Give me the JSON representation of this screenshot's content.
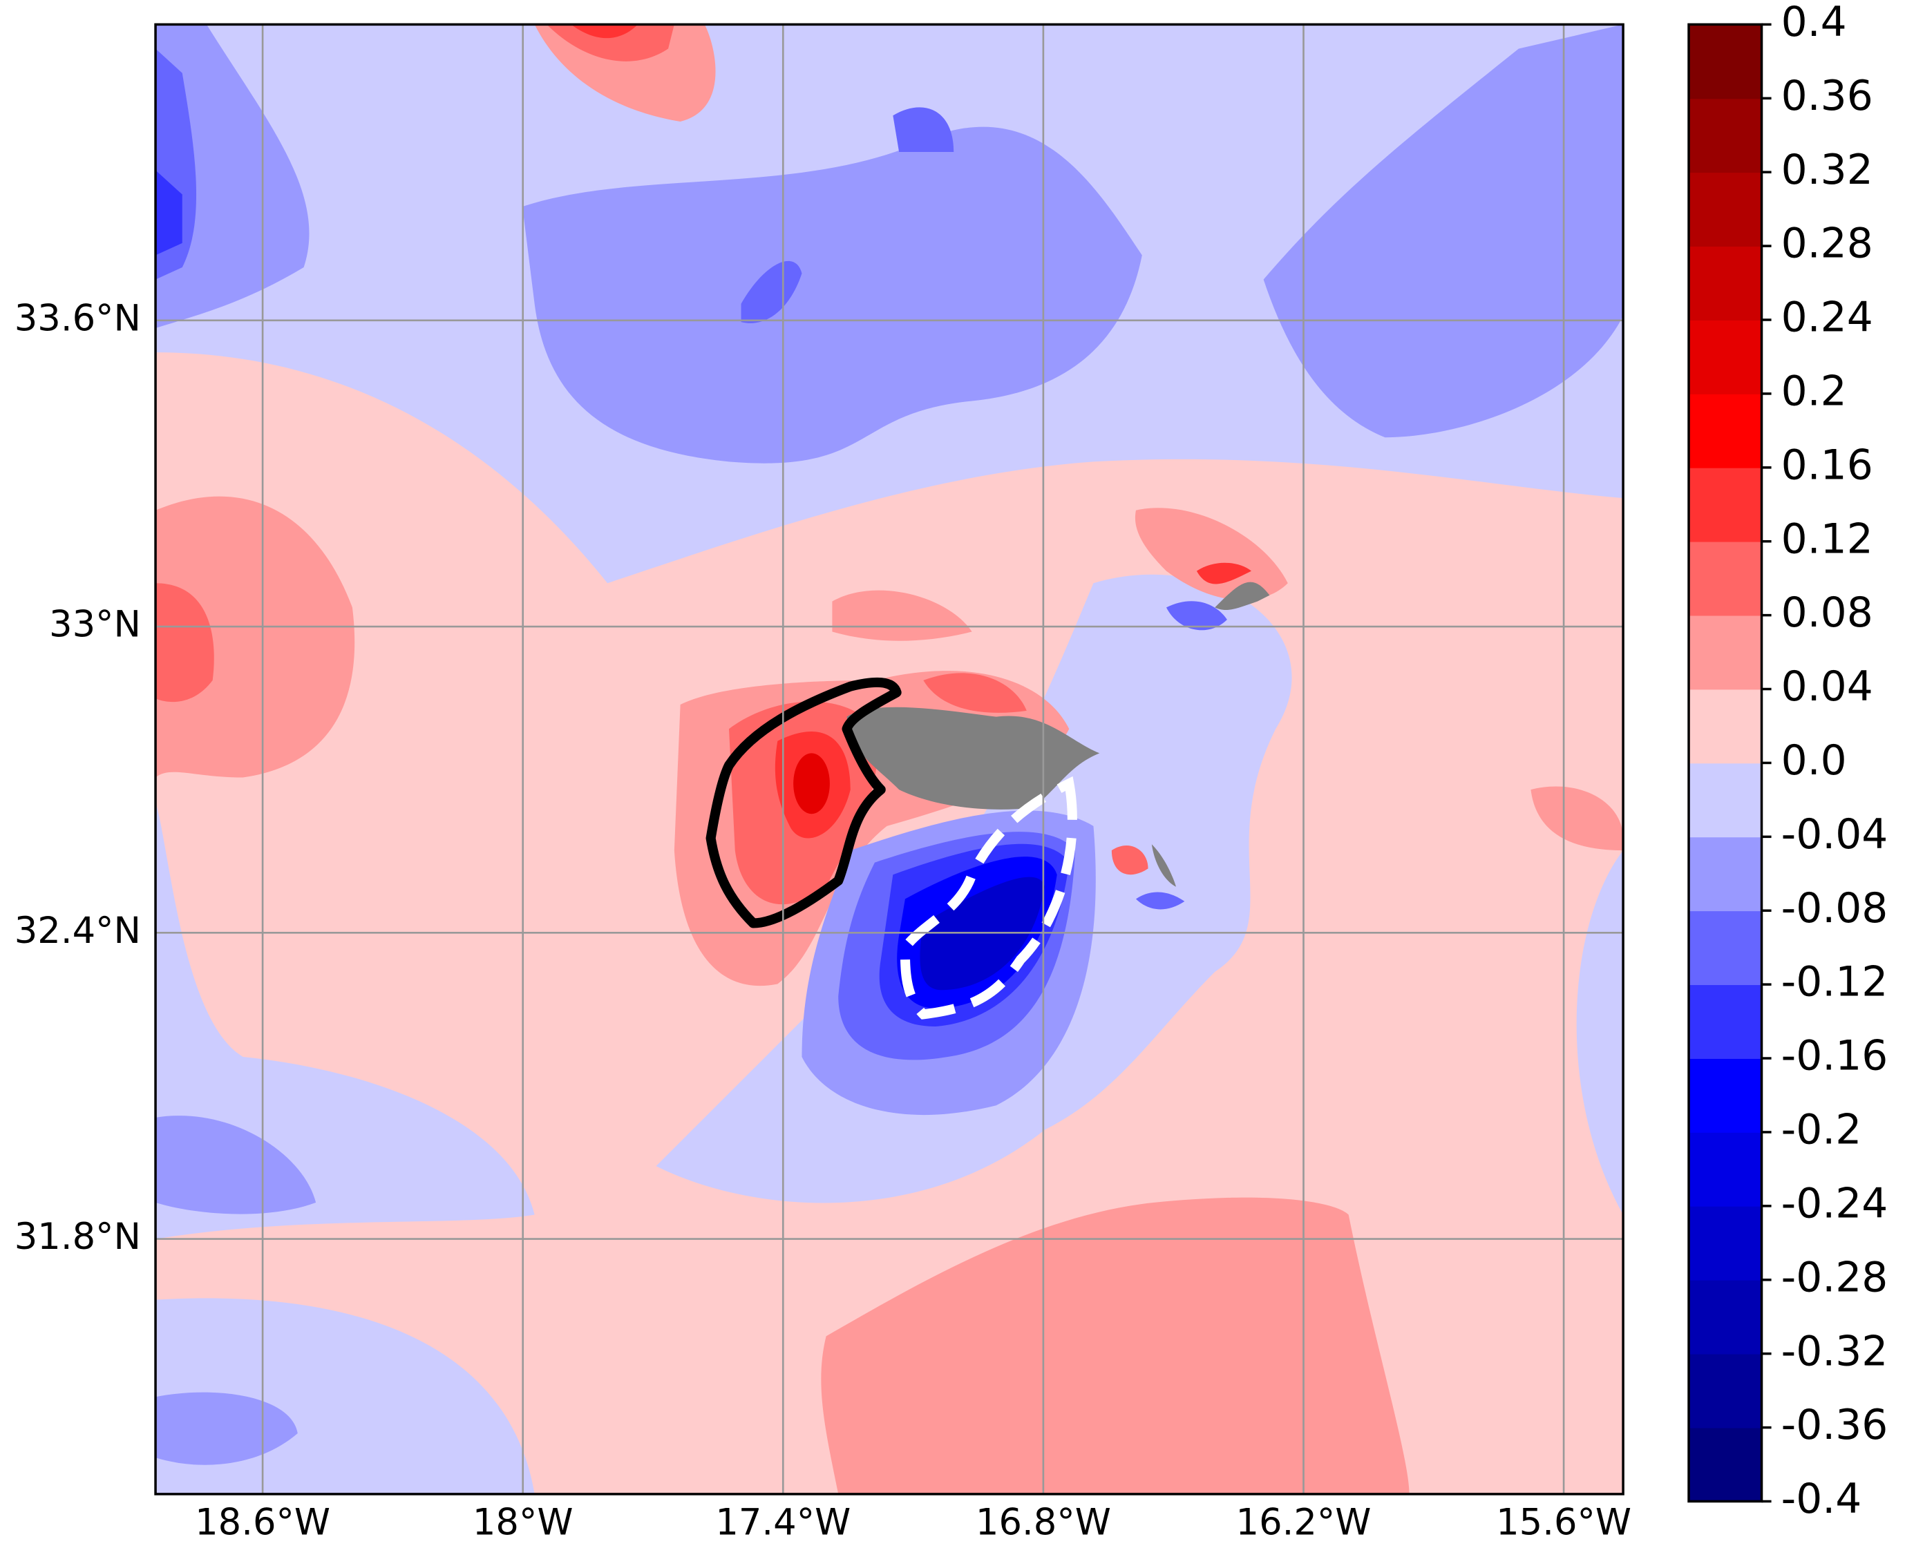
{
  "chart_data": {
    "type": "contour",
    "xlim": [
      -18.847,
      -15.463
    ],
    "ylim": [
      31.3,
      34.18
    ],
    "xticks": [
      {
        "value": -18.6,
        "label": "18.6°W"
      },
      {
        "value": -18,
        "label": "18°W"
      },
      {
        "value": -17.4,
        "label": "17.4°W"
      },
      {
        "value": -16.8,
        "label": "16.8°W"
      },
      {
        "value": -16.2,
        "label": "16.2°W"
      },
      {
        "value": -15.6,
        "label": "15.6°W"
      }
    ],
    "yticks": [
      {
        "value": 31.8,
        "label": "31.8°N"
      },
      {
        "value": 32.4,
        "label": "32.4°N"
      },
      {
        "value": 33,
        "label": "33°N"
      },
      {
        "value": 33.6,
        "label": "33.6°N"
      }
    ],
    "grid": true,
    "colorbar": {
      "lim": [
        -0.4,
        0.4
      ],
      "ticks": [
        -0.4,
        -0.36,
        -0.32,
        -0.28,
        -0.24,
        -0.2,
        -0.16,
        -0.12,
        -0.08,
        -0.04,
        {
          "value": 0,
          "label": "0.0"
        },
        0.04,
        0.08,
        0.12,
        0.16,
        0.2,
        0.24,
        0.28,
        0.32,
        0.36,
        0.4
      ],
      "colors": [
        "#00007f",
        "#000099",
        "#0000b2",
        "#0000cc",
        "#0000e5",
        "#0000ff",
        "#3333ff",
        "#6666ff",
        "#9999ff",
        "#ccccff",
        "#ffcccc",
        "#ff9999",
        "#ff6666",
        "#ff3333",
        "#ff0000",
        "#e50000",
        "#cc0000",
        "#b20000",
        "#990000",
        "#7f0000"
      ]
    }
  }
}
